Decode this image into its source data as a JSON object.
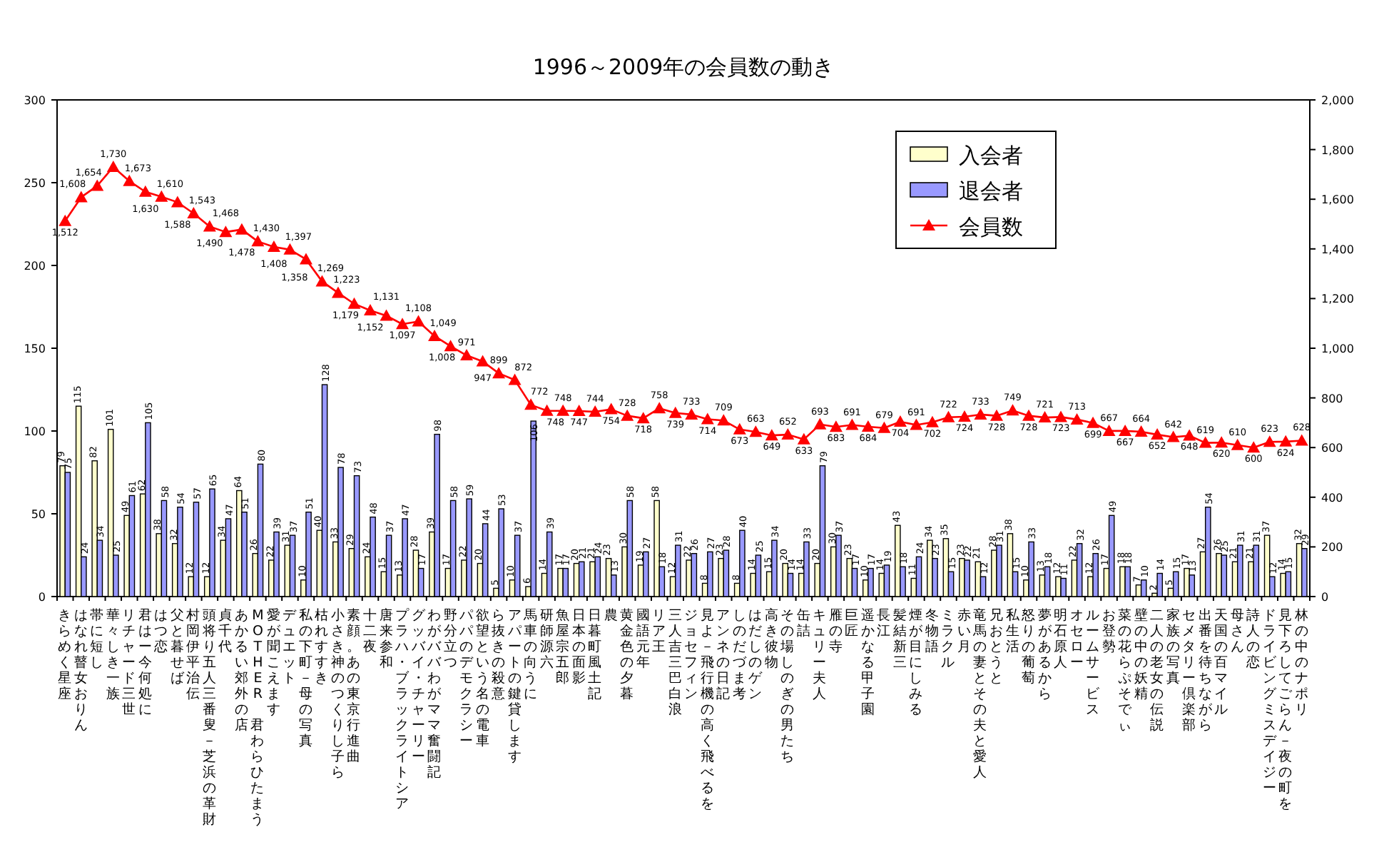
{
  "chart_data": {
    "type": "bar",
    "title": "1996～2009年の会員数の動き",
    "categories": [
      "きらめく星座",
      "はなれ瞽女おりん",
      "帯に短し",
      "華々しき一族",
      "リチャード三世",
      "君はー今何処に",
      "はつ恋",
      "父と暮せば",
      "村岡伊平治伝",
      "頭将り五人三番叟－芝浜の革財",
      "貞千代",
      "あかるい郊外の店",
      "MOTHER 君わらひたまう",
      "愛が聞こえます",
      "デュエット",
      "私の下町－母の写真",
      "枯れすすき",
      "小さき神のつくりし子ら",
      "素顔。あの東京行進曲",
      "十二夜",
      "唐来参和",
      "プラハ・ブラックライトシア",
      "グッバイ・チャーリー",
      "わがババわがママ奮闘記",
      "野分立つ",
      "パパのデモクラシー",
      "欲望という名の電車",
      "ら抜きの殺意",
      "アパートの鍵貸します",
      "馬車の向うに",
      "研師源六",
      "魚屋宗五郎",
      "日本の面影",
      "日暮町風土記",
      "農",
      "黄金色の夕暮",
      "國語元年",
      "リア王",
      "三人吉三巴白浪",
      "ジョセフィン",
      "見よ－飛行機の高く飛べるを",
      "アンネの日記",
      "しのだづま考",
      "はだしのゲン",
      "高き彼物",
      "その場しのぎの男たち",
      "缶詰",
      "キュリー夫人",
      "雁の寺",
      "巨匠",
      "遥かなる甲子園",
      "長江",
      "髪結新三",
      "煙が目にしみる",
      "冬物語",
      "ミラクル",
      "赤い月",
      "竜馬の妻とその夫と愛人",
      "兄おとうと",
      "私生活",
      "怒りの葡萄",
      "夢があるから",
      "明石原人",
      "オセロー",
      "ルームサービス",
      "お登勢",
      "菜の花らぷそでぃ",
      "壁の中の妖精",
      "二人の老女の伝説",
      "家族の写真",
      "セメタリー倶楽部",
      "出番を待ちながら",
      "天国の百マイル",
      "母さん",
      "詩人の恋",
      "ドライビングミスデイジー",
      "見下ろしてごらん－夜の町を",
      "林の中のナポリ"
    ],
    "series": [
      {
        "name": "入会者",
        "color": "#ffffcc",
        "values": [
          79,
          115,
          82,
          101,
          49,
          62,
          38,
          32,
          12,
          12,
          34,
          64,
          26,
          22,
          31,
          10,
          40,
          33,
          29,
          24,
          15,
          13,
          28,
          39,
          17,
          22,
          20,
          5,
          10,
          6,
          14,
          17,
          20,
          21,
          23,
          30,
          19,
          58,
          12,
          22,
          8,
          23,
          8,
          14,
          15,
          20,
          14,
          20,
          30,
          23,
          10,
          14,
          43,
          11,
          34,
          35,
          23,
          21,
          28,
          38,
          10,
          13,
          12,
          22,
          12,
          17,
          18,
          7,
          2,
          5,
          17,
          27,
          26,
          21,
          21,
          37,
          14,
          32
        ]
      },
      {
        "name": "退会者",
        "color": "#9999ff",
        "values": [
          75,
          24,
          34,
          25,
          61,
          105,
          58,
          54,
          57,
          65,
          47,
          51,
          80,
          39,
          37,
          51,
          128,
          78,
          73,
          48,
          37,
          47,
          17,
          98,
          58,
          59,
          44,
          53,
          37,
          106,
          39,
          17,
          21,
          24,
          13,
          58,
          27,
          18,
          31,
          26,
          27,
          28,
          40,
          25,
          34,
          14,
          33,
          79,
          37,
          17,
          17,
          19,
          18,
          24,
          23,
          15,
          22,
          12,
          31,
          15,
          33,
          18,
          11,
          32,
          26,
          49,
          18,
          10,
          14,
          15,
          13,
          54,
          25,
          31,
          31,
          12,
          15,
          29
        ]
      },
      {
        "name": "会員数",
        "color": "#ff0000",
        "type": "line",
        "axis": "y2",
        "marker": "triangle",
        "value_labels": [
          "1,512",
          "1,608",
          "1,654",
          "1,730",
          "1,673",
          "1,630",
          "1,610",
          "1,588",
          "1,543",
          "1,490",
          "1,468",
          "1,478",
          "1,430",
          "1,408",
          "1,397",
          "1,358",
          "1,269",
          "1,223",
          "1,179",
          "1,152",
          "1,131",
          "1,097",
          "1,108",
          "1,049",
          "1,008",
          "971",
          "947",
          "899",
          "872",
          "772",
          "748",
          "748",
          "747",
          "744",
          "754",
          "728",
          "718",
          "758",
          "739",
          "733",
          "714",
          "709",
          "673",
          "663",
          "649",
          "652",
          "633",
          "693",
          "683",
          "691",
          "684",
          "679",
          "704",
          "691",
          "702",
          "722",
          "724",
          "733",
          "728",
          "749",
          "728",
          "721",
          "723",
          "713",
          "699",
          "667",
          "667",
          "664",
          "652",
          "642",
          "648",
          "619",
          "620",
          "610",
          "600",
          "623",
          "624",
          "628"
        ],
        "values": [
          1512,
          1608,
          1654,
          1730,
          1673,
          1630,
          1610,
          1588,
          1543,
          1490,
          1468,
          1478,
          1430,
          1408,
          1397,
          1358,
          1269,
          1223,
          1179,
          1152,
          1131,
          1097,
          1108,
          1049,
          1008,
          971,
          947,
          899,
          872,
          772,
          748,
          748,
          747,
          744,
          754,
          728,
          718,
          758,
          739,
          733,
          714,
          709,
          673,
          663,
          649,
          652,
          633,
          693,
          683,
          691,
          684,
          679,
          704,
          691,
          702,
          722,
          724,
          733,
          728,
          749,
          728,
          721,
          723,
          713,
          699,
          667,
          667,
          664,
          652,
          642,
          648,
          619,
          620,
          610,
          600,
          623,
          624,
          628
        ]
      }
    ],
    "ylim": [
      0,
      300
    ],
    "yticks": [
      0,
      50,
      100,
      150,
      200,
      250,
      300
    ],
    "y2lim": [
      0,
      2000
    ],
    "y2ticks": [
      0,
      200,
      400,
      600,
      800,
      {
        "value": 1000,
        "label": "1,000"
      },
      {
        "value": 1200,
        "label": "1,200"
      },
      {
        "value": 1400,
        "label": "1,400"
      },
      {
        "value": 1600,
        "label": "1,600"
      },
      {
        "value": 1800,
        "label": "1,800"
      },
      {
        "value": 2000,
        "label": "2,000"
      }
    ],
    "legend": "top right",
    "data_labels": true
  }
}
